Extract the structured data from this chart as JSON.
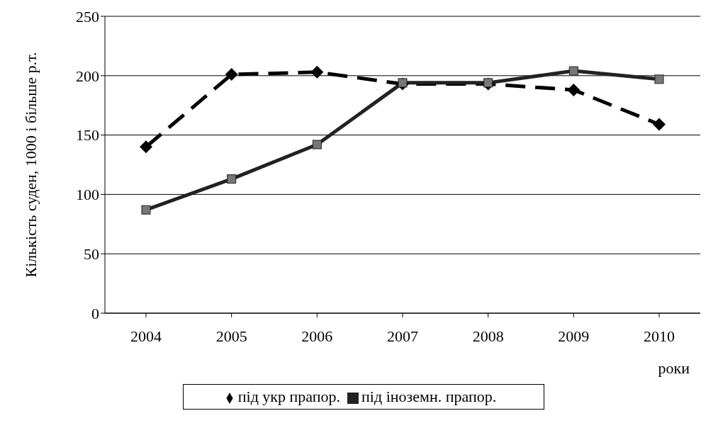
{
  "chart_data": {
    "type": "line",
    "xlabel": "роки",
    "ylabel": "Кількість суден, 1000 і більше р.т.",
    "categories": [
      "2004",
      "2005",
      "2006",
      "2007",
      "2008",
      "2009",
      "2010"
    ],
    "series": [
      {
        "name": "під укр прапор.",
        "color": "#000000",
        "marker": "diamond",
        "line_style": "dashed",
        "values": [
          140,
          201,
          203,
          193,
          193,
          188,
          159
        ]
      },
      {
        "name": "під іноземн. прапор.",
        "color": "#222222",
        "marker": "square",
        "line_style": "solid",
        "values": [
          87,
          113,
          142,
          194,
          194,
          204,
          197
        ]
      }
    ],
    "ylim": [
      0,
      250
    ],
    "yticks": [
      0,
      50,
      100,
      150,
      200,
      250
    ],
    "grid": "y",
    "legend": "bottom"
  }
}
